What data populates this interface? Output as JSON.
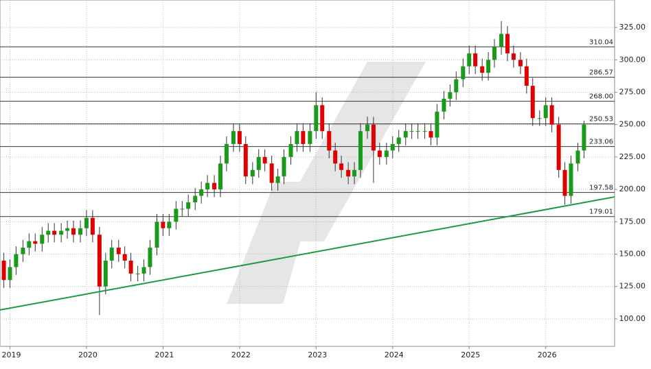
{
  "chart_data": {
    "type": "candlestick",
    "x": [
      2018.92,
      2019.0,
      2019.08,
      2019.17,
      2019.25,
      2019.33,
      2019.42,
      2019.5,
      2019.58,
      2019.67,
      2019.75,
      2019.83,
      2019.92,
      2020.0,
      2020.08,
      2020.17,
      2020.25,
      2020.33,
      2020.42,
      2020.5,
      2020.58,
      2020.67,
      2020.75,
      2020.83,
      2020.92,
      2021.0,
      2021.08,
      2021.17,
      2021.25,
      2021.33,
      2021.42,
      2021.5,
      2021.58,
      2021.67,
      2021.75,
      2021.83,
      2021.92,
      2022.0,
      2022.08,
      2022.17,
      2022.25,
      2022.33,
      2022.42,
      2022.5,
      2022.58,
      2022.67,
      2022.75,
      2022.83,
      2022.92,
      2023.0,
      2023.08,
      2023.17,
      2023.25,
      2023.33,
      2023.42,
      2023.5,
      2023.58,
      2023.67,
      2023.75,
      2023.83,
      2023.92,
      2024.0,
      2024.08,
      2024.17,
      2024.25,
      2024.33,
      2024.42,
      2024.5,
      2024.58,
      2024.67,
      2024.75,
      2024.83,
      2024.92,
      2025.0,
      2025.08,
      2025.17,
      2025.25,
      2025.33,
      2025.42,
      2025.5,
      2025.58,
      2025.67,
      2025.75,
      2025.83,
      2025.92,
      2026.0,
      2026.08,
      2026.17,
      2026.25,
      2026.33,
      2026.42,
      2026.5
    ],
    "open": [
      145,
      130,
      140,
      150,
      155,
      160,
      158,
      165,
      168,
      165,
      168,
      170,
      165,
      170,
      178,
      165,
      125,
      145,
      155,
      150,
      145,
      135,
      135,
      140,
      155,
      175,
      170,
      175,
      185,
      185,
      190,
      195,
      200,
      205,
      200,
      220,
      235,
      245,
      235,
      210,
      215,
      225,
      220,
      205,
      210,
      225,
      235,
      245,
      235,
      245,
      265,
      245,
      230,
      220,
      215,
      210,
      215,
      245,
      250,
      230,
      225,
      230,
      235,
      240,
      245,
      245,
      245,
      245,
      240,
      260,
      270,
      275,
      285,
      295,
      305,
      295,
      290,
      300,
      310,
      320,
      305,
      300,
      295,
      280,
      255,
      255,
      265,
      250,
      215,
      195,
      220,
      230
    ],
    "high": [
      151,
      146,
      156,
      161,
      166,
      166,
      171,
      174,
      174,
      174,
      176,
      176,
      176,
      184,
      184,
      171,
      151,
      161,
      161,
      156,
      151,
      141,
      146,
      161,
      181,
      181,
      181,
      191,
      191,
      196,
      201,
      206,
      211,
      211,
      226,
      241,
      251,
      251,
      241,
      221,
      231,
      231,
      226,
      216,
      231,
      241,
      251,
      251,
      251,
      275,
      271,
      251,
      236,
      226,
      221,
      221,
      251,
      256,
      256,
      236,
      236,
      241,
      246,
      251,
      251,
      251,
      251,
      251,
      266,
      276,
      281,
      291,
      301,
      311,
      311,
      301,
      306,
      316,
      330,
      326,
      311,
      306,
      301,
      286,
      261,
      271,
      271,
      256,
      221,
      226,
      236,
      253
    ],
    "low": [
      124,
      124,
      134,
      144,
      149,
      152,
      152,
      159,
      159,
      159,
      162,
      159,
      159,
      164,
      159,
      103,
      119,
      139,
      144,
      139,
      129,
      129,
      129,
      134,
      149,
      164,
      164,
      169,
      179,
      179,
      184,
      189,
      194,
      194,
      194,
      214,
      229,
      229,
      204,
      204,
      209,
      214,
      199,
      199,
      204,
      219,
      229,
      229,
      229,
      239,
      239,
      224,
      214,
      209,
      204,
      204,
      209,
      239,
      205,
      219,
      219,
      224,
      229,
      234,
      239,
      239,
      239,
      234,
      234,
      254,
      264,
      269,
      279,
      289,
      289,
      284,
      284,
      294,
      304,
      299,
      294,
      289,
      274,
      249,
      249,
      249,
      244,
      209,
      188,
      189,
      214,
      224
    ],
    "close": [
      130,
      140,
      150,
      155,
      160,
      158,
      165,
      168,
      165,
      168,
      170,
      165,
      170,
      178,
      165,
      125,
      145,
      155,
      150,
      145,
      135,
      135,
      140,
      155,
      175,
      170,
      175,
      185,
      185,
      190,
      195,
      200,
      205,
      200,
      220,
      235,
      245,
      235,
      210,
      215,
      225,
      220,
      205,
      210,
      225,
      235,
      245,
      235,
      245,
      265,
      245,
      230,
      220,
      215,
      210,
      215,
      245,
      250,
      230,
      225,
      230,
      235,
      240,
      245,
      245,
      245,
      245,
      240,
      260,
      270,
      275,
      285,
      295,
      305,
      295,
      290,
      300,
      310,
      320,
      305,
      300,
      295,
      280,
      255,
      255,
      265,
      250,
      215,
      195,
      220,
      230,
      250
    ],
    "up_color": "#1a9a1a",
    "down_color": "#e00000",
    "xlim": [
      2018.87,
      2026.9
    ],
    "xticks": [
      2019,
      2020,
      2021,
      2022,
      2023,
      2024,
      2025,
      2026
    ],
    "ylim": [
      78.8,
      346.2
    ],
    "yticks": [
      {
        "value": 100,
        "label": "100.00"
      },
      {
        "value": 125,
        "label": "125.00"
      },
      {
        "value": 150,
        "label": "150.00"
      },
      {
        "value": 175,
        "label": "175.00"
      },
      {
        "value": 200,
        "label": "200.00"
      },
      {
        "value": 225,
        "label": "225.00"
      },
      {
        "value": 250,
        "label": "250.00"
      },
      {
        "value": 275,
        "label": "275.00"
      },
      {
        "value": 300,
        "label": "300.00"
      },
      {
        "value": 325,
        "label": "325.00"
      }
    ],
    "grid": true,
    "levels": [
      {
        "value": 310.04,
        "label": "310.04"
      },
      {
        "value": 286.57,
        "label": "286.57"
      },
      {
        "value": 268.0,
        "label": "268.00"
      },
      {
        "value": 250.53,
        "label": "250.53"
      },
      {
        "value": 233.06,
        "label": "233.06"
      },
      {
        "value": 197.58,
        "label": "197.58"
      },
      {
        "value": 179.01,
        "label": "179.01"
      }
    ],
    "trendline": {
      "x": [
        2018.87,
        2026.9
      ],
      "y": [
        106.9,
        194.2
      ],
      "color": "#1a9a3a"
    }
  }
}
